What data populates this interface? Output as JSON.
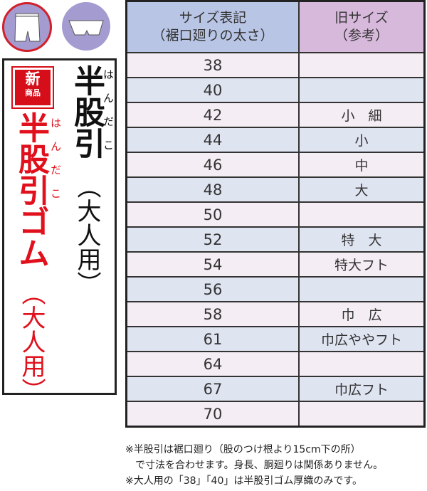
{
  "icons": {
    "first": "half-length-shorts-icon",
    "second": "short-briefs-icon"
  },
  "badge": {
    "line1": "新",
    "line2": "商品"
  },
  "product1": {
    "name": "半股引",
    "ruby": "はんだこ",
    "sub": "（大人用）"
  },
  "product2": {
    "name": "半股引ゴム",
    "ruby": "はんだこ",
    "sub": "（大人用）"
  },
  "table": {
    "headers": {
      "size_line1": "サイズ表記",
      "size_line2": "（裾口廻りの太さ）",
      "old_line1": "旧サイズ",
      "old_line2": "（参考）"
    },
    "rows": [
      {
        "size": "38",
        "old": ""
      },
      {
        "size": "40",
        "old": ""
      },
      {
        "size": "42",
        "old": "小　細"
      },
      {
        "size": "44",
        "old": "小"
      },
      {
        "size": "46",
        "old": "中"
      },
      {
        "size": "48",
        "old": "大"
      },
      {
        "size": "50",
        "old": ""
      },
      {
        "size": "52",
        "old": "特　大"
      },
      {
        "size": "54",
        "old": "特大フト"
      },
      {
        "size": "56",
        "old": ""
      },
      {
        "size": "58",
        "old": "巾　広"
      },
      {
        "size": "61",
        "old": "巾広ややフト"
      },
      {
        "size": "64",
        "old": ""
      },
      {
        "size": "67",
        "old": "巾広フト"
      },
      {
        "size": "70",
        "old": ""
      }
    ]
  },
  "notes": {
    "line1": "※半股引は裾口廻り（股のつけ根より15cm下の所）",
    "line2": "　で寸法を合わせます。身長、胴廻りは関係ありません。",
    "line3": "※大人用の「38」「40」は半股引ゴム厚織のみです。"
  },
  "colors": {
    "red": "#e0101c",
    "header_size": "#b9c5e5",
    "header_old": "#d7b9dc",
    "row_pink": "#f4edf3",
    "row_blue": "#dfe4f1"
  }
}
